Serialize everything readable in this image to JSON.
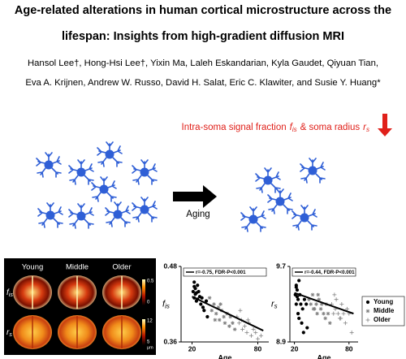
{
  "header": {
    "title_lines": [
      "Age-related alterations in human cortical microstructure across the",
      "lifespan: Insights from high-gradient diffusion MRI"
    ],
    "authors": [
      "Hansol Lee†, Hong-Hsi Lee†, Yixin Ma, Laleh Eskandarian, Kyla Gaudet, Qiyuan Tian,",
      "Eva A. Krijnen, Andrew W. Russo, David H. Salat, Eric C. Klawiter, and Susie Y. Huang*"
    ]
  },
  "annotation": {
    "text": "Intra-soma signal fraction",
    "fis": {
      "base": "f",
      "sub": "is"
    },
    "middle": "& soma radius",
    "rs": {
      "base": "r",
      "sub": "s"
    }
  },
  "aging_label": "Aging",
  "brain_panel": {
    "columns": [
      "Young",
      "Middle",
      "Older"
    ],
    "rows": [
      {
        "base": "f",
        "sub": "is"
      },
      {
        "base": "r",
        "sub": "s"
      }
    ],
    "colorbars": [
      {
        "max": "0.5",
        "min": "0"
      },
      {
        "max": "12",
        "min": "5",
        "unit": "μm"
      }
    ]
  },
  "chart_data": [
    {
      "type": "scatter",
      "ylabel": {
        "base": "f",
        "sub": "is"
      },
      "xlabel": "Age",
      "annotation": "r=-0.75, FDR-P<0.001",
      "xlim": [
        10,
        90
      ],
      "xticks": [
        20,
        80
      ],
      "ylim": [
        0.36,
        0.48
      ],
      "yticks": [
        0.36,
        0.48
      ],
      "legend": false,
      "series": [
        {
          "color": "#000000",
          "marker": "circle",
          "x": [
            21,
            22,
            22,
            23,
            24,
            24,
            25,
            26,
            27,
            28,
            29,
            30,
            31,
            33,
            34,
            22,
            23,
            25
          ],
          "values": [
            0.44,
            0.455,
            0.43,
            0.445,
            0.438,
            0.425,
            0.45,
            0.44,
            0.432,
            0.42,
            0.43,
            0.415,
            0.41,
            0.425,
            0.4,
            0.448,
            0.436,
            0.428
          ]
        },
        {
          "color": "#808080",
          "marker": "star",
          "x": [
            36,
            38,
            40,
            42,
            44,
            45,
            47,
            49,
            50,
            52,
            54,
            55,
            57,
            59,
            46,
            41
          ],
          "values": [
            0.43,
            0.41,
            0.42,
            0.405,
            0.415,
            0.395,
            0.41,
            0.4,
            0.39,
            0.405,
            0.385,
            0.4,
            0.39,
            0.38,
            0.42,
            0.395
          ]
        },
        {
          "color": "#808080",
          "marker": "plus",
          "x": [
            61,
            63,
            65,
            66,
            68,
            70,
            72,
            74,
            76,
            78,
            80,
            83,
            64,
            71
          ],
          "values": [
            0.4,
            0.39,
            0.395,
            0.38,
            0.385,
            0.375,
            0.39,
            0.37,
            0.38,
            0.375,
            0.365,
            0.37,
            0.41,
            0.395
          ]
        }
      ],
      "trend": {
        "x": [
          20,
          85
        ],
        "y": [
          0.432,
          0.378
        ]
      }
    },
    {
      "type": "scatter",
      "ylabel": {
        "base": "r",
        "sub": "s"
      },
      "xlabel": "Age",
      "annotation": "r=-0.44, FDR-P<0.001",
      "xlim": [
        15,
        90
      ],
      "xticks": [
        20,
        80
      ],
      "ylim": [
        8.9,
        9.7
      ],
      "yticks": [
        8.9,
        9.7
      ],
      "legend": "right",
      "series": [
        {
          "name": "Young",
          "color": "#000000",
          "marker": "circle",
          "x": [
            21,
            22,
            22,
            23,
            24,
            24,
            25,
            26,
            27,
            28,
            29,
            30,
            31,
            33,
            34,
            22,
            23,
            25
          ],
          "values": [
            9.4,
            9.5,
            9.3,
            9.45,
            9.35,
            9.2,
            9.55,
            9.4,
            9.3,
            9.1,
            9.25,
            9.0,
            9.35,
            9.3,
            9.05,
            9.48,
            9.38,
            9.15
          ]
        },
        {
          "name": "Middle",
          "color": "#808080",
          "marker": "star",
          "x": [
            36,
            38,
            40,
            42,
            44,
            45,
            47,
            49,
            50,
            52,
            54,
            55,
            57,
            59,
            46,
            41
          ],
          "values": [
            9.35,
            9.3,
            9.4,
            9.25,
            9.3,
            9.2,
            9.35,
            9.25,
            9.3,
            9.2,
            9.15,
            9.3,
            9.2,
            9.1,
            9.4,
            9.25
          ]
        },
        {
          "name": "Older",
          "color": "#808080",
          "marker": "plus",
          "x": [
            61,
            63,
            65,
            66,
            68,
            70,
            72,
            74,
            76,
            78,
            80,
            83,
            64,
            71
          ],
          "values": [
            9.3,
            9.2,
            9.25,
            9.35,
            9.2,
            9.15,
            9.3,
            9.2,
            9.1,
            9.25,
            9.2,
            9.0,
            9.4,
            9.15
          ]
        }
      ],
      "trend": {
        "x": [
          20,
          85
        ],
        "y": [
          9.42,
          9.2
        ]
      }
    }
  ]
}
